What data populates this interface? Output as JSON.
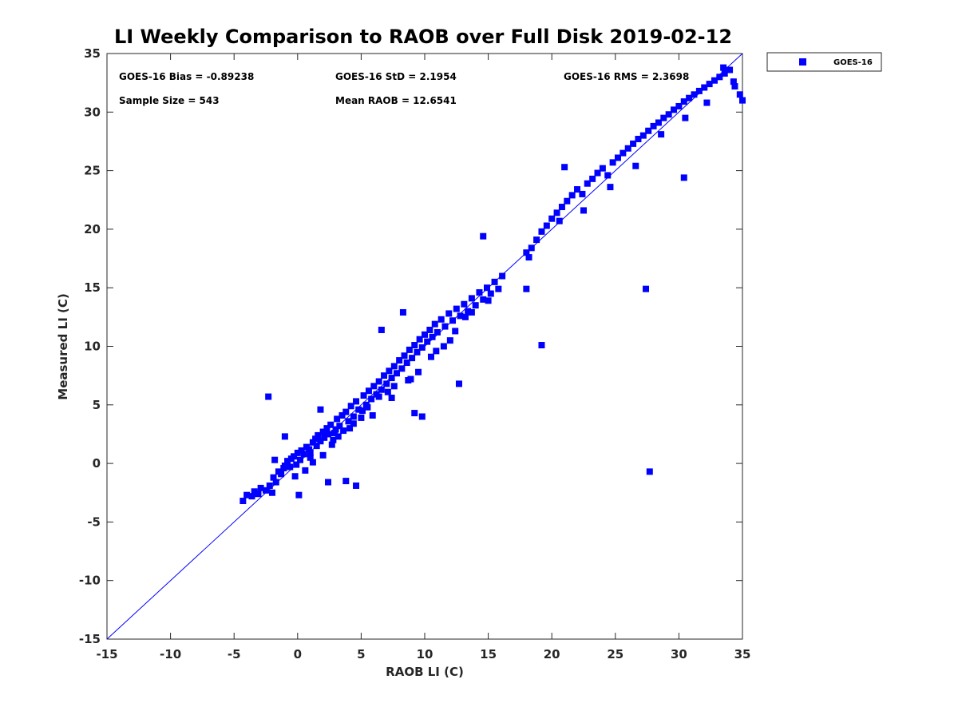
{
  "chart_data": {
    "type": "scatter",
    "title": "LI Weekly Comparison to RAOB over Full Disk 2019-02-12",
    "xlabel": "RAOB LI (C)",
    "ylabel": "Measured LI (C)",
    "xlim": [
      -15,
      35
    ],
    "ylim": [
      -15,
      35
    ],
    "xticks": [
      "-15",
      "-10",
      "-5",
      "0",
      "5",
      "10",
      "15",
      "20",
      "25",
      "30",
      "35"
    ],
    "yticks": [
      "-15",
      "-10",
      "-5",
      "0",
      "5",
      "10",
      "15",
      "20",
      "25",
      "30",
      "35"
    ],
    "grid": false,
    "legend_position": "outside-top-right",
    "one_to_one_line": true,
    "stats": {
      "bias": "GOES-16 Bias = -0.89238",
      "std": "GOES-16 StD = 2.1954",
      "rms": "GOES-16 RMS = 2.3698",
      "sample_size": "Sample Size = 543",
      "mean_raob": "Mean RAOB = 12.6541"
    },
    "series": [
      {
        "name": "GOES-16",
        "color": "#0000ff",
        "marker": "square",
        "x": [
          -4.3,
          -4.0,
          -3.6,
          -3.4,
          -3.1,
          -2.9,
          -2.5,
          -2.2,
          -2.0,
          -1.9,
          -1.7,
          -1.5,
          -1.3,
          -1.1,
          -1.0,
          -0.8,
          -0.6,
          -0.5,
          -0.3,
          -0.1,
          0.0,
          0.2,
          0.3,
          0.5,
          0.7,
          0.9,
          1.0,
          1.2,
          1.4,
          1.5,
          1.6,
          1.8,
          2.0,
          2.1,
          2.3,
          2.4,
          2.6,
          2.8,
          3.0,
          3.1,
          3.3,
          3.5,
          3.6,
          3.8,
          4.0,
          4.2,
          4.4,
          4.6,
          4.8,
          5.0,
          5.2,
          5.4,
          5.6,
          5.8,
          6.0,
          6.2,
          6.4,
          6.6,
          6.8,
          7.0,
          7.2,
          7.4,
          7.6,
          7.8,
          8.0,
          8.2,
          8.4,
          8.6,
          8.8,
          9.0,
          9.2,
          9.4,
          9.6,
          9.8,
          10.0,
          10.2,
          10.4,
          10.6,
          10.8,
          11.0,
          11.3,
          11.6,
          11.9,
          12.2,
          12.5,
          12.8,
          13.1,
          13.4,
          13.7,
          14.0,
          14.3,
          14.6,
          14.9,
          15.2,
          15.5,
          15.8,
          16.1,
          18.0,
          18.2,
          18.4,
          18.8,
          19.2,
          19.6,
          20.0,
          20.4,
          20.8,
          21.2,
          21.6,
          22.0,
          22.4,
          22.8,
          23.2,
          23.6,
          24.0,
          24.4,
          24.8,
          25.2,
          25.6,
          26.0,
          26.4,
          26.8,
          27.2,
          27.6,
          28.0,
          28.4,
          28.8,
          29.2,
          29.6,
          30.0,
          30.4,
          30.8,
          31.2,
          31.6,
          32.0,
          32.4,
          32.8,
          33.2,
          33.6,
          34.0,
          34.4,
          34.8,
          35.0,
          -2.3,
          -1.0,
          1.8,
          2.4,
          3.8,
          4.6,
          6.6,
          7.6,
          8.3,
          9.2,
          9.8,
          12.7,
          14.6,
          18.0,
          19.2,
          21.0,
          27.4,
          27.7,
          30.4,
          33.5,
          -1.8,
          -0.2,
          0.6,
          1.2,
          2.0,
          2.7,
          3.2,
          4.1,
          5.1,
          5.9,
          6.4,
          7.1,
          8.7,
          9.5,
          10.5,
          11.5,
          12.4,
          13.2,
          15.0,
          20.6,
          22.5,
          24.6,
          26.6,
          28.6,
          30.5,
          32.2,
          34.3,
          0.1,
          1.0,
          2.9,
          4.4,
          5.5,
          7.4,
          8.9,
          10.9,
          12.0,
          13.7
        ],
        "y": [
          -3.2,
          -2.7,
          -2.8,
          -2.4,
          -2.6,
          -2.1,
          -2.3,
          -1.9,
          -2.5,
          -1.2,
          -1.6,
          -0.7,
          -0.9,
          -0.4,
          -0.2,
          0.2,
          -0.3,
          0.4,
          0.6,
          -0.1,
          0.9,
          0.3,
          1.1,
          0.8,
          1.4,
          1.2,
          0.5,
          1.8,
          2.1,
          1.5,
          2.4,
          1.9,
          2.7,
          2.2,
          3.0,
          2.5,
          3.3,
          2.0,
          2.9,
          3.8,
          3.2,
          4.1,
          2.8,
          4.4,
          3.6,
          4.9,
          4.0,
          5.3,
          4.6,
          3.9,
          5.8,
          5.0,
          6.2,
          5.5,
          6.6,
          5.9,
          7.0,
          6.3,
          7.5,
          6.8,
          7.9,
          7.3,
          8.3,
          7.7,
          8.8,
          8.1,
          9.2,
          8.6,
          9.7,
          9.0,
          10.1,
          9.5,
          10.6,
          9.9,
          11.0,
          10.4,
          11.4,
          10.8,
          11.9,
          11.2,
          12.3,
          11.7,
          12.8,
          12.2,
          13.2,
          12.6,
          13.6,
          13.0,
          14.1,
          13.5,
          14.6,
          14.0,
          15.0,
          14.5,
          15.5,
          14.9,
          16.0,
          18.0,
          17.6,
          18.4,
          19.1,
          19.8,
          20.3,
          20.9,
          21.4,
          21.9,
          22.4,
          22.9,
          23.4,
          23.0,
          23.9,
          24.3,
          24.8,
          25.2,
          24.6,
          25.7,
          26.1,
          26.5,
          26.9,
          27.3,
          27.7,
          28.0,
          28.4,
          28.8,
          29.1,
          29.5,
          29.8,
          30.2,
          30.5,
          30.9,
          31.2,
          31.5,
          31.8,
          32.1,
          32.4,
          32.7,
          33.0,
          33.3,
          33.6,
          32.2,
          31.5,
          31.0,
          5.7,
          2.3,
          4.6,
          -1.6,
          -1.5,
          -1.9,
          11.4,
          6.6,
          12.9,
          4.3,
          4.0,
          6.8,
          19.4,
          14.9,
          10.1,
          25.3,
          14.9,
          -0.7,
          24.4,
          33.8,
          0.3,
          -1.1,
          -0.6,
          0.1,
          0.7,
          1.6,
          2.3,
          3.0,
          4.5,
          4.1,
          5.7,
          6.1,
          7.1,
          7.8,
          9.1,
          10.0,
          11.3,
          12.5,
          13.9,
          20.7,
          21.6,
          23.6,
          25.4,
          28.1,
          29.5,
          30.8,
          32.6,
          -2.7,
          0.9,
          2.6,
          3.4,
          4.8,
          5.6,
          7.2,
          9.6,
          10.5,
          12.9
        ]
      }
    ]
  },
  "legend": {
    "label": "GOES-16"
  }
}
